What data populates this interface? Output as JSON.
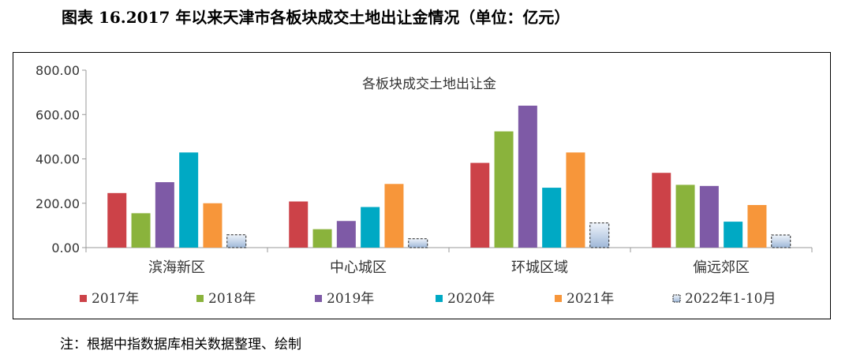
{
  "figure_title": "图表 16.2017 年以来天津市各板块成交土地出让金情况（单位：亿元）",
  "note": "注：根据中指数据库相关数据整理、绘制",
  "chart_data": {
    "type": "bar",
    "title": "各板块成交土地出让金",
    "xlabel": "",
    "ylabel": "",
    "ylim": [
      0,
      800
    ],
    "yticks": [
      "0.00",
      "200.00",
      "400.00",
      "600.00",
      "800.00"
    ],
    "grid": false,
    "legend_position": "bottom",
    "categories": [
      "滨海新区",
      "中心城区",
      "环城区域",
      "偏远郊区"
    ],
    "series": [
      {
        "name": "2017年",
        "color": "#cc4248",
        "values": [
          246,
          208,
          382,
          337
        ]
      },
      {
        "name": "2018年",
        "color": "#8ab33c",
        "values": [
          155,
          83,
          524,
          283
        ]
      },
      {
        "name": "2019年",
        "color": "#7e5aa6",
        "values": [
          295,
          120,
          640,
          278
        ]
      },
      {
        "name": "2020年",
        "color": "#00a9c4",
        "values": [
          429,
          183,
          270,
          117
        ]
      },
      {
        "name": "2021年",
        "color": "#f7963a",
        "values": [
          200,
          287,
          429,
          192
        ]
      },
      {
        "name": "2022年1-10月",
        "color": "#c6d7eb",
        "pattern": "dashed",
        "values": [
          58,
          40,
          111,
          57
        ]
      }
    ]
  }
}
